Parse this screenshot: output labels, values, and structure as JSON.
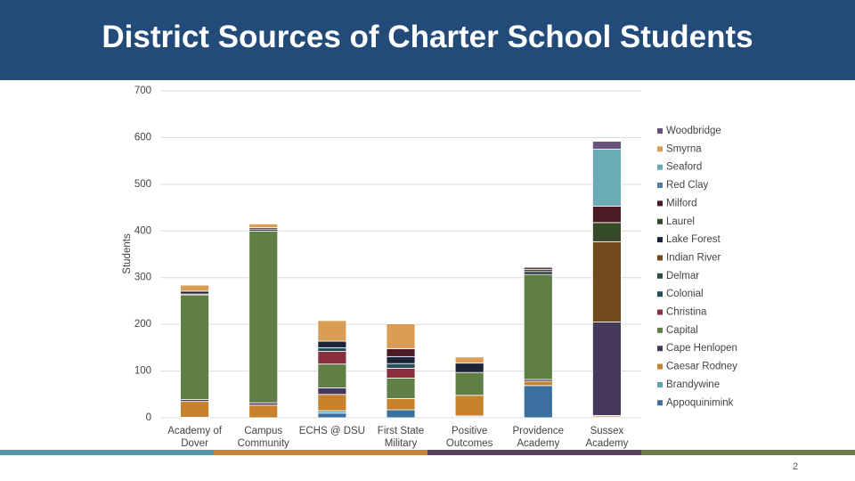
{
  "chart_data": {
    "type": "stacked_bar",
    "title": "District Sources of Charter School Students",
    "y_label": "Students",
    "categories": [
      "Academy of Dover",
      "Campus Community",
      "ECHS @ DSU",
      "First State Military",
      "Positive Outcomes",
      "Providence Academy",
      "Sussex Academy"
    ],
    "ylim": [
      0,
      700
    ],
    "yticks": [
      0,
      100,
      200,
      300,
      400,
      500,
      600,
      700
    ],
    "grid": true,
    "legend": "right",
    "series": [
      {
        "name": "Woodbridge",
        "color": "#6a527f",
        "values": [
          0,
          0,
          0,
          0,
          0,
          0,
          17
        ]
      },
      {
        "name": "Smyrna",
        "color": "#d99d55",
        "values": [
          13,
          8,
          44,
          53,
          13,
          0,
          0
        ]
      },
      {
        "name": "Seaford",
        "color": "#6aabb5",
        "values": [
          0,
          0,
          0,
          0,
          0,
          0,
          122
        ]
      },
      {
        "name": "Red Clay",
        "color": "#4a80a8",
        "values": [
          0,
          0,
          0,
          0,
          0,
          0,
          0
        ]
      },
      {
        "name": "Milford",
        "color": "#4a1a26",
        "values": [
          0,
          3,
          0,
          17,
          0,
          4,
          35
        ]
      },
      {
        "name": "Laurel",
        "color": "#364a2a",
        "values": [
          0,
          0,
          0,
          0,
          0,
          5,
          41
        ]
      },
      {
        "name": "Lake Forest",
        "color": "#1e2438",
        "values": [
          6,
          4,
          14,
          15,
          20,
          6,
          0
        ]
      },
      {
        "name": "Indian River",
        "color": "#704a1a",
        "values": [
          0,
          0,
          0,
          0,
          0,
          0,
          172
        ]
      },
      {
        "name": "Delmar",
        "color": "#2c4c46",
        "values": [
          0,
          0,
          0,
          0,
          0,
          0,
          0
        ]
      },
      {
        "name": "Colonial",
        "color": "#234e5a",
        "values": [
          0,
          0,
          8,
          10,
          0,
          0,
          0
        ]
      },
      {
        "name": "Christina",
        "color": "#8a2f3e",
        "values": [
          2,
          0,
          27,
          21,
          0,
          0,
          0
        ]
      },
      {
        "name": "Capital",
        "color": "#5f7f47",
        "values": [
          224,
          368,
          51,
          44,
          49,
          225,
          0
        ]
      },
      {
        "name": "Cape Henlopen",
        "color": "#46385c",
        "values": [
          4,
          5,
          14,
          0,
          0,
          4,
          200
        ]
      },
      {
        "name": "Caesar Rodney",
        "color": "#c8822e",
        "values": [
          34,
          27,
          35,
          24,
          44,
          9,
          3
        ]
      },
      {
        "name": "Brandywine",
        "color": "#5aa3b0",
        "values": [
          0,
          0,
          5,
          0,
          2,
          0,
          0
        ]
      },
      {
        "name": "Appoquinimink",
        "color": "#3a6fa0",
        "values": [
          1,
          0,
          10,
          17,
          2,
          69,
          2
        ]
      }
    ]
  },
  "slide_number": "2"
}
